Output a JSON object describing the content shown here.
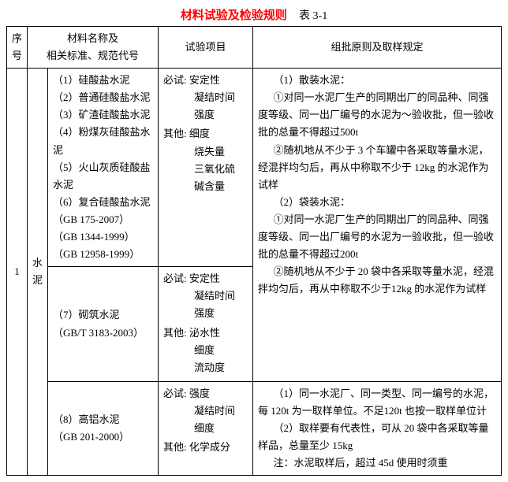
{
  "title": {
    "main": "材料试验及检验规则",
    "sub": "表 3-1"
  },
  "header": {
    "seq": "序号",
    "material": "材料名称及\n相关标准、规范代号",
    "test": "试验项目",
    "rule": "组批原则及取样规定"
  },
  "row": {
    "seq": "1",
    "category": "水泥",
    "group1": {
      "materials": "（1）硅酸盐水泥\n（2）普通硅酸盐水泥\n（3）矿渣硅酸盐水泥\n（4）粉煤灰硅酸盐水泥\n（5）火山灰质硅酸盐水泥\n（6）复合硅酸盐水泥\n（GB 175-2007）\n（GB 1344-1999）\n（GB 12958-1999）",
      "test_must_label": "必试:",
      "test_must_first": "安定性",
      "test_must_rest": "凝结时间\n强度",
      "test_other_label": "其他:",
      "test_other_first": "细度",
      "test_other_rest": "烧失量\n三氧化硫\n碱含量"
    },
    "group2": {
      "materials": "（7）砌筑水泥\n（GB/T 3183-2003）",
      "test_must_label": "必试:",
      "test_must_first": "安定性",
      "test_must_rest": "凝结时间\n强度",
      "test_other_label": "其他:",
      "test_other_first": "泌水性",
      "test_other_rest": "细度\n流动度"
    },
    "group3": {
      "materials": "（8）高铝水泥\n（GB 201-2000）",
      "test_must_label": "必试:",
      "test_must_first": "强度",
      "test_must_rest": "凝结时间\n细度",
      "test_other_label": "其他:",
      "test_other_first": "化学成分",
      "test_other_rest": ""
    },
    "rules12": {
      "h1": "（1）散装水泥：",
      "p1": "①对同一水泥厂生产的同期出厂的同品种、同强度等级、同一出厂编号的水泥为～验收批，但一验收批的总量不得超过500t",
      "p2": "②随机地从不少于 3 个车罐中各采取等量水泥，经混拌均匀后，再从中称取不少于 12kg 的水泥作为试样",
      "h2": "（2）袋装水泥：",
      "p3": "①对同一水泥厂生产的同期出厂的同品种、同强度等级、同一出厂编号的水泥为一验收批，但一验收批的总量不得超过200t",
      "p4": "②随机地从不少于 20 袋中各采取等量水泥，经混拌均匀后，再从中称取不少于12kg 的水泥作为试样"
    },
    "rules3": {
      "p1": "（1）同一水泥厂、同一类型、同一编号的水泥，每 120t 为一取样单位。不足120t 也按一取样单位计",
      "p2": "（2）取样要有代表性，可从 20 袋中各采取等量样品，总量至少 15kg",
      "p3": "注：水泥取样后，超过 45d 使用时须重"
    }
  }
}
